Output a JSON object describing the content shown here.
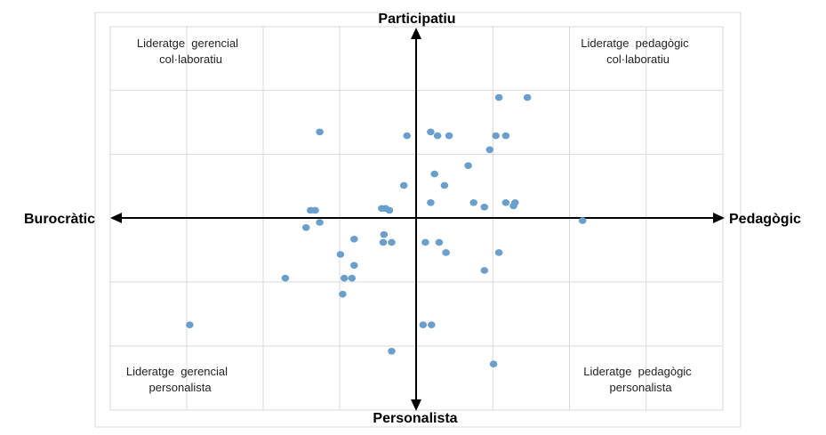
{
  "chart_data": {
    "type": "scatter",
    "title": "",
    "axes": {
      "left": "Burocràtic",
      "right": "Pedagògic",
      "top": "Participatiu",
      "bottom": "Personalista"
    },
    "quadrants": {
      "top_left": [
        "Lideratge  gerencial",
        "col·laboratiu"
      ],
      "top_right": [
        "Lideratge  pedagògic",
        "col·laboratiu"
      ],
      "bottom_left": [
        "Lideratge  gerencial",
        "personalista"
      ],
      "bottom_right": [
        "Lideratge  pedagògic",
        "personalista"
      ]
    },
    "xlim": [
      -4,
      4
    ],
    "ylim": [
      -3,
      3
    ],
    "grid": true,
    "point_color": "#6a9fcb",
    "points": [
      {
        "x": 1.08,
        "y": 1.89
      },
      {
        "x": 1.45,
        "y": 1.89
      },
      {
        "x": -1.26,
        "y": 1.35
      },
      {
        "x": -0.12,
        "y": 1.29
      },
      {
        "x": 0.19,
        "y": 1.35
      },
      {
        "x": 0.28,
        "y": 1.29
      },
      {
        "x": 0.43,
        "y": 1.29
      },
      {
        "x": 1.04,
        "y": 1.29
      },
      {
        "x": 1.17,
        "y": 1.29
      },
      {
        "x": 0.96,
        "y": 1.07
      },
      {
        "x": 0.68,
        "y": 0.82
      },
      {
        "x": 0.24,
        "y": 0.69
      },
      {
        "x": -0.16,
        "y": 0.51
      },
      {
        "x": 0.37,
        "y": 0.51
      },
      {
        "x": 0.19,
        "y": 0.24
      },
      {
        "x": 0.75,
        "y": 0.24
      },
      {
        "x": 0.89,
        "y": 0.17
      },
      {
        "x": 1.17,
        "y": 0.24
      },
      {
        "x": 1.29,
        "y": 0.24
      },
      {
        "x": 1.27,
        "y": 0.19
      },
      {
        "x": -1.38,
        "y": 0.12
      },
      {
        "x": -1.32,
        "y": 0.12
      },
      {
        "x": -0.45,
        "y": 0.15
      },
      {
        "x": -0.4,
        "y": 0.15
      },
      {
        "x": -0.35,
        "y": 0.12
      },
      {
        "x": -1.26,
        "y": -0.07
      },
      {
        "x": -1.44,
        "y": -0.15
      },
      {
        "x": 2.17,
        "y": -0.04
      },
      {
        "x": -0.42,
        "y": -0.26
      },
      {
        "x": -0.81,
        "y": -0.33
      },
      {
        "x": -0.43,
        "y": -0.38
      },
      {
        "x": -0.32,
        "y": -0.38
      },
      {
        "x": 0.12,
        "y": -0.38
      },
      {
        "x": 0.3,
        "y": -0.38
      },
      {
        "x": -0.99,
        "y": -0.57
      },
      {
        "x": 0.39,
        "y": -0.54
      },
      {
        "x": 1.08,
        "y": -0.54
      },
      {
        "x": -0.81,
        "y": -0.74
      },
      {
        "x": 0.89,
        "y": -0.82
      },
      {
        "x": -1.71,
        "y": -0.94
      },
      {
        "x": -0.94,
        "y": -0.94
      },
      {
        "x": -0.84,
        "y": -0.94
      },
      {
        "x": -0.96,
        "y": -1.19
      },
      {
        "x": -2.96,
        "y": -1.67
      },
      {
        "x": 0.09,
        "y": -1.67
      },
      {
        "x": 0.2,
        "y": -1.67
      },
      {
        "x": -0.32,
        "y": -2.08
      },
      {
        "x": 1.01,
        "y": -2.28
      }
    ]
  }
}
